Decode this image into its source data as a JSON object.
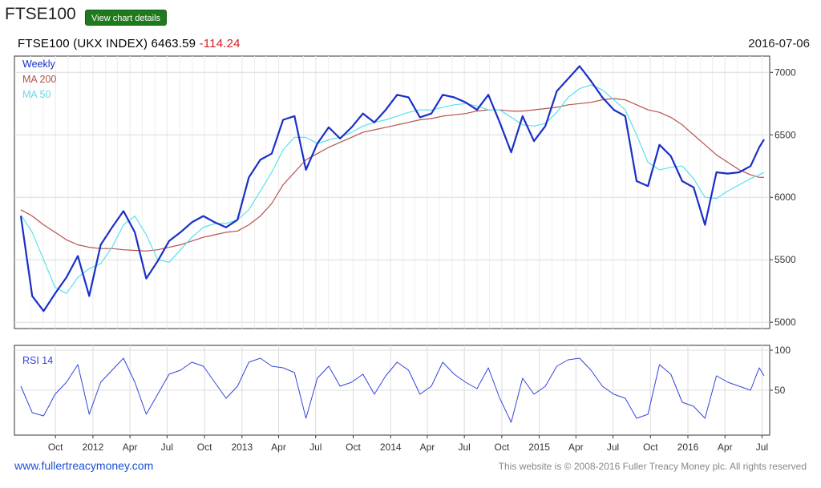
{
  "page": {
    "title": "FTSE100",
    "details_button": "View chart details"
  },
  "header": {
    "series_label": "FTSE100  (UKX INDEX)",
    "last_value": "6463.59",
    "change": "-114.24",
    "date": "2016-07-06"
  },
  "footer": {
    "link": "www.fullertreacymoney.com",
    "copyright": "This website is © 2008-2016 Fuller Treacy Money plc. All rights reserved"
  },
  "colors": {
    "weekly": "#1a2fc7",
    "ma200": "#b5524a",
    "ma50": "#58e1ee",
    "rsi": "#3344dd",
    "grid": "#dcdcdc"
  },
  "chart_data": [
    {
      "type": "line",
      "legend": [
        "Weekly",
        "MA 200",
        "MA 50"
      ],
      "legend_position": "top-left",
      "ylim": [
        4950,
        7130
      ],
      "yticks": [
        5000,
        5500,
        6000,
        6500,
        7000
      ],
      "grid": true,
      "x": [
        "2011-07-08",
        "2011-08-05",
        "2011-09-02",
        "2011-09-30",
        "2011-10-28",
        "2011-11-25",
        "2011-12-23",
        "2012-01-20",
        "2012-02-17",
        "2012-03-16",
        "2012-04-13",
        "2012-05-11",
        "2012-06-08",
        "2012-07-06",
        "2012-08-03",
        "2012-08-31",
        "2012-09-28",
        "2012-10-26",
        "2012-11-23",
        "2012-12-21",
        "2013-01-18",
        "2013-02-15",
        "2013-03-15",
        "2013-04-12",
        "2013-05-10",
        "2013-06-07",
        "2013-07-05",
        "2013-08-02",
        "2013-08-30",
        "2013-09-27",
        "2013-10-25",
        "2013-11-22",
        "2013-12-20",
        "2014-01-17",
        "2014-02-14",
        "2014-03-14",
        "2014-04-11",
        "2014-05-09",
        "2014-06-06",
        "2014-07-04",
        "2014-08-01",
        "2014-08-29",
        "2014-09-26",
        "2014-10-24",
        "2014-11-21",
        "2014-12-19",
        "2015-01-16",
        "2015-02-13",
        "2015-03-13",
        "2015-04-10",
        "2015-05-08",
        "2015-06-05",
        "2015-07-03",
        "2015-07-31",
        "2015-08-28",
        "2015-09-25",
        "2015-10-23",
        "2015-11-20",
        "2015-12-18",
        "2016-01-15",
        "2016-02-12",
        "2016-03-11",
        "2016-04-08",
        "2016-05-06",
        "2016-06-03",
        "2016-06-24",
        "2016-07-06"
      ],
      "xticks": [
        {
          "label": "Oct",
          "date": "2011-10-01"
        },
        {
          "label": "2012",
          "date": "2012-01-01"
        },
        {
          "label": "Apr",
          "date": "2012-04-01"
        },
        {
          "label": "Jul",
          "date": "2012-07-01"
        },
        {
          "label": "Oct",
          "date": "2012-10-01"
        },
        {
          "label": "2013",
          "date": "2013-01-01"
        },
        {
          "label": "Apr",
          "date": "2013-04-01"
        },
        {
          "label": "Jul",
          "date": "2013-07-01"
        },
        {
          "label": "Oct",
          "date": "2013-10-01"
        },
        {
          "label": "2014",
          "date": "2014-01-01"
        },
        {
          "label": "Apr",
          "date": "2014-04-01"
        },
        {
          "label": "Jul",
          "date": "2014-07-01"
        },
        {
          "label": "Oct",
          "date": "2014-10-01"
        },
        {
          "label": "2015",
          "date": "2015-01-01"
        },
        {
          "label": "Apr",
          "date": "2015-04-01"
        },
        {
          "label": "Jul",
          "date": "2015-07-01"
        },
        {
          "label": "Oct",
          "date": "2015-10-01"
        },
        {
          "label": "2016",
          "date": "2016-01-01"
        },
        {
          "label": "Apr",
          "date": "2016-04-01"
        },
        {
          "label": "Jul",
          "date": "2016-07-01"
        }
      ],
      "series": [
        {
          "name": "Weekly",
          "values": [
            5850,
            5210,
            5090,
            5230,
            5360,
            5530,
            5210,
            5620,
            5760,
            5890,
            5720,
            5350,
            5490,
            5650,
            5720,
            5800,
            5850,
            5800,
            5760,
            5820,
            6160,
            6300,
            6350,
            6620,
            6650,
            6220,
            6430,
            6560,
            6470,
            6560,
            6670,
            6600,
            6700,
            6820,
            6800,
            6640,
            6670,
            6820,
            6800,
            6760,
            6700,
            6820,
            6600,
            6360,
            6650,
            6450,
            6570,
            6850,
            6950,
            7050,
            6930,
            6800,
            6700,
            6650,
            6130,
            6090,
            6420,
            6330,
            6130,
            6080,
            5780,
            6200,
            6190,
            6200,
            6250,
            6400,
            6463
          ]
        },
        {
          "name": "MA 200",
          "values": [
            5900,
            5850,
            5780,
            5720,
            5660,
            5620,
            5600,
            5590,
            5590,
            5580,
            5575,
            5570,
            5580,
            5600,
            5620,
            5650,
            5680,
            5700,
            5720,
            5730,
            5780,
            5850,
            5950,
            6100,
            6200,
            6300,
            6350,
            6400,
            6440,
            6480,
            6520,
            6540,
            6560,
            6580,
            6600,
            6620,
            6630,
            6650,
            6660,
            6670,
            6690,
            6700,
            6700,
            6690,
            6690,
            6700,
            6710,
            6720,
            6740,
            6750,
            6760,
            6780,
            6790,
            6780,
            6740,
            6700,
            6680,
            6640,
            6580,
            6500,
            6420,
            6340,
            6280,
            6220,
            6180,
            6160,
            6160
          ]
        },
        {
          "name": "MA 50",
          "values": [
            5860,
            5720,
            5500,
            5280,
            5230,
            5360,
            5430,
            5470,
            5600,
            5780,
            5850,
            5700,
            5500,
            5480,
            5580,
            5680,
            5760,
            5790,
            5790,
            5820,
            5900,
            6050,
            6200,
            6380,
            6480,
            6480,
            6430,
            6460,
            6480,
            6520,
            6570,
            6600,
            6620,
            6650,
            6680,
            6700,
            6700,
            6720,
            6740,
            6750,
            6730,
            6700,
            6700,
            6640,
            6580,
            6570,
            6590,
            6680,
            6800,
            6870,
            6900,
            6860,
            6780,
            6700,
            6500,
            6280,
            6220,
            6240,
            6250,
            6150,
            6000,
            5990,
            6050,
            6100,
            6150,
            6180,
            6200
          ]
        }
      ]
    },
    {
      "type": "line",
      "legend": [
        "RSI 14"
      ],
      "legend_position": "top-left",
      "ylim": [
        0,
        100
      ],
      "yticks": [
        50,
        100
      ],
      "grid": true,
      "series": [
        {
          "name": "RSI 14",
          "values": [
            55,
            22,
            18,
            45,
            60,
            82,
            20,
            60,
            75,
            90,
            60,
            20,
            45,
            70,
            75,
            85,
            80,
            60,
            40,
            55,
            85,
            90,
            80,
            78,
            72,
            15,
            65,
            80,
            55,
            60,
            70,
            45,
            68,
            85,
            75,
            45,
            55,
            85,
            70,
            60,
            52,
            78,
            40,
            10,
            65,
            45,
            55,
            80,
            88,
            90,
            75,
            55,
            45,
            40,
            15,
            20,
            82,
            70,
            35,
            30,
            15,
            68,
            60,
            55,
            50,
            78,
            68
          ]
        }
      ]
    }
  ]
}
